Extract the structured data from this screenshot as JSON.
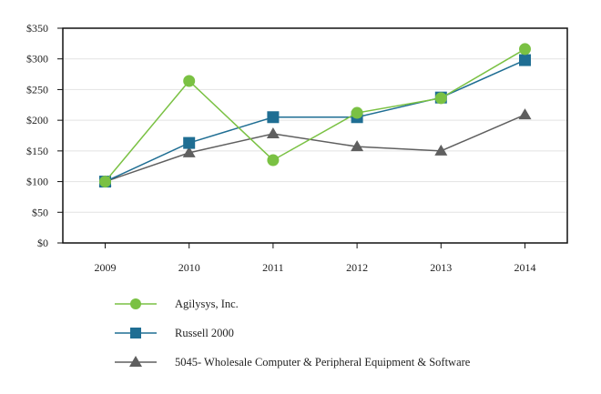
{
  "chart_data": {
    "type": "line",
    "title": "",
    "xlabel": "",
    "ylabel": "",
    "categories": [
      "2009",
      "2010",
      "2011",
      "2012",
      "2013",
      "2014"
    ],
    "ylim": [
      0,
      350
    ],
    "yticks": [
      0,
      50,
      100,
      150,
      200,
      250,
      300,
      350
    ],
    "ytick_labels": [
      "$0",
      "$50",
      "$100",
      "$150",
      "$200",
      "$250",
      "$300",
      "$350"
    ],
    "grid": true,
    "legend_position": "bottom",
    "series": [
      {
        "name": "Agilysys, Inc.",
        "color": "#7ac143",
        "marker": "circle",
        "values": [
          100,
          264,
          135,
          212,
          236,
          316
        ]
      },
      {
        "name": "Russell 2000",
        "color": "#1f6e93",
        "marker": "square",
        "values": [
          100,
          163,
          205,
          205,
          237,
          298
        ]
      },
      {
        "name": "5045- Wholesale Computer & Peripheral Equipment & Software",
        "color": "#5f5f5f",
        "marker": "triangle",
        "values": [
          100,
          147,
          178,
          157,
          150,
          209
        ]
      }
    ]
  }
}
